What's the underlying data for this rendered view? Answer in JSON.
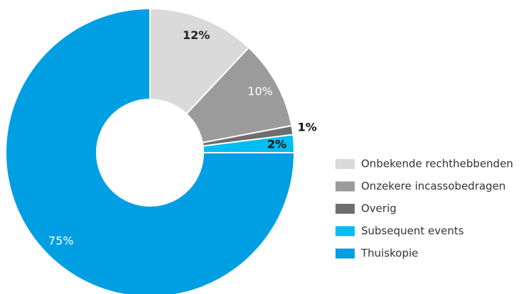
{
  "chart_data": {
    "type": "pie",
    "categories": [
      "Onbekende rechthebbenden",
      "Onzekere incassobedragen",
      "Overig",
      "Subsequent events",
      "Thuiskopie"
    ],
    "values": [
      12,
      10,
      1,
      2,
      75
    ],
    "value_labels": [
      "12%",
      "10%",
      "1%",
      "2%",
      "75%"
    ],
    "colors": [
      "#dadada",
      "#9b9b9b",
      "#6e6e6e",
      "#00bdf2",
      "#009fe3"
    ],
    "donut": true,
    "legend": "right"
  }
}
